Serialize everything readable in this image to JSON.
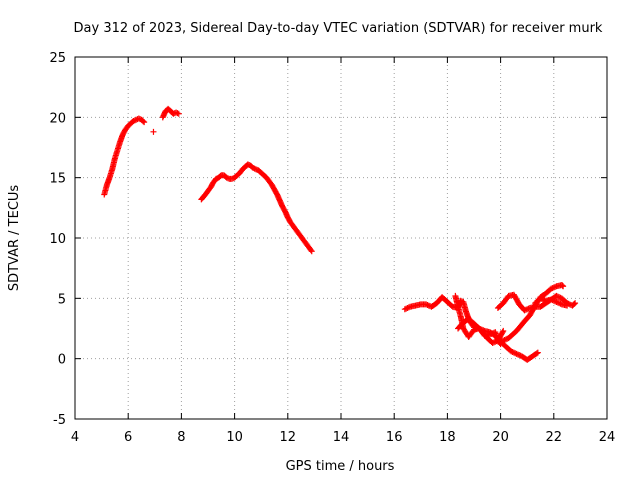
{
  "chart_data": {
    "type": "scatter",
    "title": "Day 312 of 2023, Sidereal Day-to-day VTEC variation (SDTVAR) for receiver murk",
    "xlabel": "GPS time / hours",
    "ylabel": "SDTVAR / TECUs",
    "xlim": [
      4,
      24
    ],
    "ylim": [
      -5,
      25
    ],
    "xticks": [
      4,
      6,
      8,
      10,
      12,
      14,
      16,
      18,
      20,
      22,
      24
    ],
    "yticks": [
      -5,
      0,
      5,
      10,
      15,
      20,
      25
    ],
    "grid": true,
    "marker": "+",
    "color": "#ff0000",
    "series": [
      {
        "name": "SDTVAR",
        "segments": [
          [
            [
              5.1,
              13.6
            ],
            [
              5.2,
              14.4
            ],
            [
              5.3,
              15.0
            ],
            [
              5.4,
              15.7
            ],
            [
              5.5,
              16.6
            ],
            [
              5.6,
              17.3
            ],
            [
              5.7,
              18.0
            ],
            [
              5.8,
              18.6
            ],
            [
              5.9,
              19.0
            ],
            [
              6.0,
              19.3
            ],
            [
              6.1,
              19.5
            ],
            [
              6.2,
              19.7
            ],
            [
              6.3,
              19.8
            ],
            [
              6.4,
              19.9
            ],
            [
              6.5,
              19.8
            ],
            [
              6.6,
              19.6
            ]
          ],
          [
            [
              6.95,
              18.8
            ]
          ],
          [
            [
              7.3,
              20.0
            ],
            [
              7.4,
              20.5
            ],
            [
              7.5,
              20.7
            ],
            [
              7.6,
              20.5
            ],
            [
              7.7,
              20.3
            ],
            [
              7.8,
              20.4
            ],
            [
              7.9,
              20.3
            ]
          ],
          [
            [
              8.75,
              13.2
            ],
            [
              8.9,
              13.6
            ],
            [
              9.0,
              13.9
            ],
            [
              9.1,
              14.2
            ],
            [
              9.2,
              14.6
            ],
            [
              9.3,
              14.9
            ],
            [
              9.4,
              15.0
            ],
            [
              9.5,
              15.2
            ],
            [
              9.6,
              15.2
            ],
            [
              9.7,
              15.0
            ],
            [
              9.8,
              14.9
            ],
            [
              9.9,
              14.9
            ],
            [
              10.0,
              15.0
            ],
            [
              10.1,
              15.2
            ],
            [
              10.2,
              15.4
            ],
            [
              10.3,
              15.7
            ],
            [
              10.4,
              15.9
            ],
            [
              10.5,
              16.1
            ],
            [
              10.6,
              16.0
            ],
            [
              10.7,
              15.8
            ],
            [
              10.8,
              15.7
            ],
            [
              10.9,
              15.6
            ],
            [
              11.0,
              15.4
            ],
            [
              11.1,
              15.2
            ],
            [
              11.2,
              15.0
            ],
            [
              11.3,
              14.7
            ],
            [
              11.4,
              14.4
            ],
            [
              11.5,
              14.0
            ],
            [
              11.6,
              13.6
            ],
            [
              11.7,
              13.1
            ],
            [
              11.8,
              12.6
            ],
            [
              11.9,
              12.2
            ],
            [
              12.0,
              11.7
            ],
            [
              12.1,
              11.3
            ],
            [
              12.2,
              11.0
            ],
            [
              12.3,
              10.7
            ],
            [
              12.4,
              10.4
            ],
            [
              12.5,
              10.1
            ],
            [
              12.6,
              9.8
            ],
            [
              12.7,
              9.5
            ],
            [
              12.8,
              9.2
            ],
            [
              12.9,
              8.9
            ]
          ],
          [
            [
              16.4,
              4.1
            ],
            [
              16.6,
              4.3
            ],
            [
              16.8,
              4.4
            ],
            [
              17.0,
              4.5
            ],
            [
              17.2,
              4.5
            ],
            [
              17.4,
              4.3
            ],
            [
              17.6,
              4.6
            ],
            [
              17.8,
              5.1
            ],
            [
              18.0,
              4.7
            ],
            [
              18.2,
              4.3
            ],
            [
              18.4,
              4.2
            ],
            [
              18.5,
              4.8
            ],
            [
              18.6,
              4.7
            ],
            [
              18.7,
              3.9
            ],
            [
              18.8,
              3.3
            ],
            [
              18.9,
              2.9
            ],
            [
              19.0,
              2.6
            ],
            [
              19.2,
              2.5
            ],
            [
              19.4,
              2.3
            ],
            [
              19.6,
              2.2
            ],
            [
              19.8,
              1.9
            ],
            [
              20.0,
              1.4
            ],
            [
              20.2,
              1.0
            ],
            [
              20.4,
              0.6
            ],
            [
              20.6,
              0.4
            ],
            [
              20.8,
              0.2
            ],
            [
              21.0,
              -0.1
            ],
            [
              21.2,
              0.2
            ],
            [
              21.4,
              0.5
            ]
          ],
          [
            [
              18.3,
              5.2
            ],
            [
              18.4,
              4.3
            ],
            [
              18.5,
              3.5
            ],
            [
              18.6,
              2.5
            ],
            [
              18.8,
              1.8
            ],
            [
              19.0,
              2.4
            ],
            [
              19.2,
              2.5
            ],
            [
              19.5,
              1.7
            ],
            [
              19.7,
              1.3
            ],
            [
              19.9,
              1.5
            ],
            [
              20.0,
              1.9
            ],
            [
              20.1,
              2.3
            ]
          ],
          [
            [
              18.4,
              2.5
            ],
            [
              18.6,
              3.0
            ],
            [
              18.8,
              3.3
            ],
            [
              19.0,
              2.9
            ],
            [
              19.2,
              2.5
            ],
            [
              19.4,
              1.9
            ],
            [
              19.6,
              2.0
            ],
            [
              19.8,
              2.2
            ],
            [
              19.9,
              1.5
            ],
            [
              20.0,
              1.2
            ]
          ],
          [
            [
              19.9,
              4.2
            ],
            [
              20.1,
              4.6
            ],
            [
              20.3,
              5.2
            ],
            [
              20.5,
              5.3
            ],
            [
              20.7,
              4.5
            ],
            [
              20.9,
              4.0
            ],
            [
              21.1,
              4.2
            ],
            [
              21.3,
              4.3
            ],
            [
              21.5,
              4.3
            ],
            [
              21.7,
              4.6
            ],
            [
              21.9,
              4.9
            ],
            [
              22.1,
              5.2
            ],
            [
              22.3,
              5.0
            ],
            [
              22.5,
              4.6
            ],
            [
              22.7,
              4.4
            ],
            [
              22.8,
              4.6
            ]
          ],
          [
            [
              20.0,
              1.4
            ],
            [
              20.3,
              1.7
            ],
            [
              20.6,
              2.3
            ],
            [
              20.9,
              3.1
            ],
            [
              21.1,
              3.6
            ],
            [
              21.3,
              4.4
            ],
            [
              21.5,
              5.1
            ],
            [
              21.7,
              5.4
            ],
            [
              21.9,
              5.8
            ],
            [
              22.1,
              6.0
            ],
            [
              22.3,
              6.1
            ],
            [
              22.35,
              6.0
            ]
          ],
          [
            [
              21.3,
              4.6
            ],
            [
              21.5,
              5.0
            ],
            [
              21.7,
              4.8
            ],
            [
              21.9,
              4.9
            ],
            [
              22.1,
              4.7
            ],
            [
              22.3,
              4.5
            ],
            [
              22.5,
              4.4
            ]
          ]
        ]
      }
    ]
  }
}
